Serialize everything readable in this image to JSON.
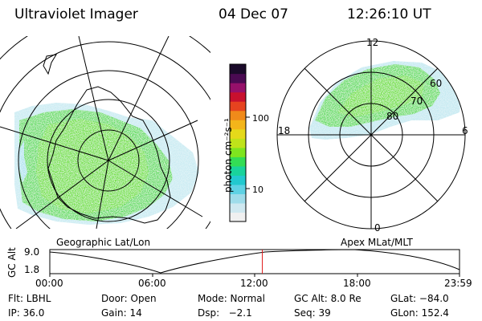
{
  "header": {
    "instrument": "Ultraviolet Imager",
    "date": "04 Dec 07",
    "time": "12:26:10 UT"
  },
  "colorbar": {
    "unit_label": "photon cm⁻²s⁻¹",
    "ticks": [
      "100",
      "10"
    ],
    "colors": [
      "#f0f0f0",
      "#cfe8f0",
      "#9fdcea",
      "#5fd2e4",
      "#22c9cf",
      "#19d39b",
      "#33dd55",
      "#7ee51f",
      "#bfe31a",
      "#e5d91a",
      "#f3b51a",
      "#f08a1a",
      "#e6431f",
      "#c8102e",
      "#96106a",
      "#4a0a52",
      "#1a0a2a"
    ]
  },
  "left_panel": {
    "caption": "Geographic Lat/Lon"
  },
  "right_panel": {
    "caption": "Apex MLat/MLT",
    "mlt_labels": {
      "top": "12",
      "bottom": "0",
      "left": "18",
      "right": "6"
    },
    "lat_labels": [
      "80",
      "70",
      "60"
    ]
  },
  "alt_plot": {
    "axis_label": "GC Alt",
    "y_ticks": [
      "9.0",
      "1.8"
    ],
    "x_ticks": [
      "00:00",
      "06:00",
      "12:00",
      "18:00",
      "23:59"
    ],
    "current_time_hours": 12.44,
    "marker_color": "#e02020"
  },
  "info": {
    "flt": "Flt: LBHL",
    "door": "Door: Open",
    "mode": "Mode: Normal",
    "gc_alt": "GC Alt: 8.0 Re",
    "glat": "GLat: −84.0",
    "ip": "IP: 36.0",
    "gain": "Gain: 14",
    "dsp": "Dsp:   −2.1",
    "seq": "Seq: 39",
    "glon": "GLon: 152.4"
  }
}
